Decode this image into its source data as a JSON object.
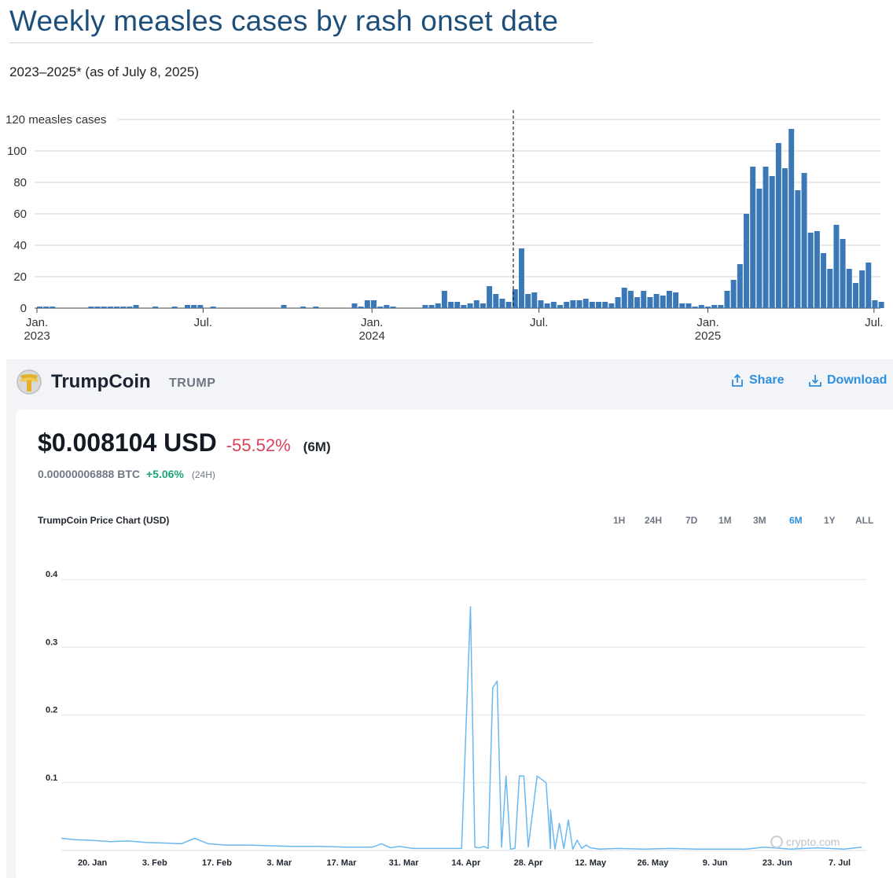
{
  "chart_data": [
    {
      "type": "bar",
      "title": "Weekly measles cases by rash onset date",
      "subtitle": "2023–2025* (as of July 8, 2025)",
      "y_unit_label": "measles cases",
      "ylim": [
        0,
        120
      ],
      "yticks": [
        0,
        20,
        40,
        60,
        80,
        100,
        120
      ],
      "x_start": "2023-01-01",
      "x_end": "2025-07-08",
      "x_ticks": [
        {
          "date": "2023-01-01",
          "label": "Jan.",
          "year": "2023"
        },
        {
          "date": "2023-07-01",
          "label": "Jul.",
          "year": ""
        },
        {
          "date": "2024-01-01",
          "label": "Jan.",
          "year": "2024"
        },
        {
          "date": "2024-07-01",
          "label": "Jul.",
          "year": ""
        },
        {
          "date": "2025-01-01",
          "label": "Jan.",
          "year": "2025"
        },
        {
          "date": "2025-07-01",
          "label": "Jul.",
          "year": ""
        }
      ],
      "reference_line_date": "2024-06-03",
      "grid": true,
      "bar_color": "#3a78b7",
      "weeks": [
        {
          "week": "2023-01-01",
          "cases": 1
        },
        {
          "week": "2023-01-08",
          "cases": 1
        },
        {
          "week": "2023-01-15",
          "cases": 1
        },
        {
          "week": "2023-02-26",
          "cases": 1
        },
        {
          "week": "2023-03-05",
          "cases": 1
        },
        {
          "week": "2023-03-12",
          "cases": 1
        },
        {
          "week": "2023-03-19",
          "cases": 1
        },
        {
          "week": "2023-03-26",
          "cases": 1
        },
        {
          "week": "2023-04-02",
          "cases": 1
        },
        {
          "week": "2023-04-09",
          "cases": 1
        },
        {
          "week": "2023-04-16",
          "cases": 2
        },
        {
          "week": "2023-05-07",
          "cases": 1
        },
        {
          "week": "2023-05-28",
          "cases": 1
        },
        {
          "week": "2023-06-11",
          "cases": 2
        },
        {
          "week": "2023-06-18",
          "cases": 2
        },
        {
          "week": "2023-06-25",
          "cases": 2
        },
        {
          "week": "2023-07-09",
          "cases": 1
        },
        {
          "week": "2023-09-24",
          "cases": 2
        },
        {
          "week": "2023-10-15",
          "cases": 1
        },
        {
          "week": "2023-10-29",
          "cases": 1
        },
        {
          "week": "2023-12-10",
          "cases": 3
        },
        {
          "week": "2023-12-17",
          "cases": 1
        },
        {
          "week": "2023-12-24",
          "cases": 5
        },
        {
          "week": "2023-12-31",
          "cases": 5
        },
        {
          "week": "2024-01-07",
          "cases": 1
        },
        {
          "week": "2024-01-14",
          "cases": 2
        },
        {
          "week": "2024-01-21",
          "cases": 1
        },
        {
          "week": "2024-02-25",
          "cases": 2
        },
        {
          "week": "2024-03-03",
          "cases": 2
        },
        {
          "week": "2024-03-10",
          "cases": 3
        },
        {
          "week": "2024-03-17",
          "cases": 11
        },
        {
          "week": "2024-03-24",
          "cases": 4
        },
        {
          "week": "2024-03-31",
          "cases": 4
        },
        {
          "week": "2024-04-07",
          "cases": 2
        },
        {
          "week": "2024-04-14",
          "cases": 3
        },
        {
          "week": "2024-04-21",
          "cases": 5
        },
        {
          "week": "2024-04-28",
          "cases": 3
        },
        {
          "week": "2024-05-05",
          "cases": 14
        },
        {
          "week": "2024-05-12",
          "cases": 9
        },
        {
          "week": "2024-05-19",
          "cases": 6
        },
        {
          "week": "2024-05-26",
          "cases": 4
        },
        {
          "week": "2024-06-02",
          "cases": 12
        },
        {
          "week": "2024-06-09",
          "cases": 38
        },
        {
          "week": "2024-06-16",
          "cases": 9
        },
        {
          "week": "2024-06-23",
          "cases": 10
        },
        {
          "week": "2024-06-30",
          "cases": 5
        },
        {
          "week": "2024-07-07",
          "cases": 3
        },
        {
          "week": "2024-07-14",
          "cases": 4
        },
        {
          "week": "2024-07-21",
          "cases": 2
        },
        {
          "week": "2024-07-28",
          "cases": 4
        },
        {
          "week": "2024-08-04",
          "cases": 5
        },
        {
          "week": "2024-08-11",
          "cases": 5
        },
        {
          "week": "2024-08-18",
          "cases": 6
        },
        {
          "week": "2024-08-25",
          "cases": 4
        },
        {
          "week": "2024-09-01",
          "cases": 4
        },
        {
          "week": "2024-09-08",
          "cases": 4
        },
        {
          "week": "2024-09-15",
          "cases": 3
        },
        {
          "week": "2024-09-22",
          "cases": 7
        },
        {
          "week": "2024-09-29",
          "cases": 13
        },
        {
          "week": "2024-10-06",
          "cases": 11
        },
        {
          "week": "2024-10-13",
          "cases": 7
        },
        {
          "week": "2024-10-20",
          "cases": 11
        },
        {
          "week": "2024-10-27",
          "cases": 7
        },
        {
          "week": "2024-11-03",
          "cases": 9
        },
        {
          "week": "2024-11-10",
          "cases": 8
        },
        {
          "week": "2024-11-17",
          "cases": 11
        },
        {
          "week": "2024-11-24",
          "cases": 10
        },
        {
          "week": "2024-12-01",
          "cases": 3
        },
        {
          "week": "2024-12-08",
          "cases": 3
        },
        {
          "week": "2024-12-15",
          "cases": 1
        },
        {
          "week": "2024-12-22",
          "cases": 2
        },
        {
          "week": "2024-12-29",
          "cases": 1
        },
        {
          "week": "2025-01-05",
          "cases": 3
        },
        {
          "week": "2025-01-12",
          "cases": 1
        },
        {
          "week": "2025-01-19",
          "cases": 3
        },
        {
          "week": "2025-01-26",
          "cases": 4
        },
        {
          "week": "2025-02-02",
          "cases": 3
        },
        {
          "week": "2025-02-09",
          "cases": 1
        },
        {
          "week": "2025-02-16",
          "cases": 2
        },
        {
          "week": "2025-02-23",
          "cases": 1
        }
      ],
      "weeks_2025": [
        {
          "week": "2025-01-05",
          "cases": 2
        },
        {
          "week": "2025-01-12",
          "cases": 2
        },
        {
          "week": "2025-01-19",
          "cases": 11
        },
        {
          "week": "2025-01-26",
          "cases": 18
        },
        {
          "week": "2025-02-02",
          "cases": 28
        },
        {
          "week": "2025-02-09",
          "cases": 60
        },
        {
          "week": "2025-02-16",
          "cases": 90
        },
        {
          "week": "2025-02-23",
          "cases": 76
        },
        {
          "week": "2025-03-02",
          "cases": 90
        },
        {
          "week": "2025-03-09",
          "cases": 84
        },
        {
          "week": "2025-03-16",
          "cases": 105
        },
        {
          "week": "2025-03-23",
          "cases": 89
        },
        {
          "week": "2025-03-30",
          "cases": 114
        },
        {
          "week": "2025-04-06",
          "cases": 75
        },
        {
          "week": "2025-04-13",
          "cases": 86
        },
        {
          "week": "2025-04-20",
          "cases": 48
        },
        {
          "week": "2025-04-27",
          "cases": 49
        },
        {
          "week": "2025-05-04",
          "cases": 35
        },
        {
          "week": "2025-05-11",
          "cases": 25
        },
        {
          "week": "2025-05-18",
          "cases": 53
        },
        {
          "week": "2025-05-25",
          "cases": 44
        },
        {
          "week": "2025-06-01",
          "cases": 25
        },
        {
          "week": "2025-06-08",
          "cases": 16
        },
        {
          "week": "2025-06-15",
          "cases": 24
        },
        {
          "week": "2025-06-22",
          "cases": 29
        },
        {
          "week": "2025-06-29",
          "cases": 5
        },
        {
          "week": "2025-07-06",
          "cases": 4
        }
      ]
    },
    {
      "type": "line",
      "title": "TrumpCoin Price Chart (USD)",
      "ylim": [
        0,
        0.42
      ],
      "yticks": [
        0.1,
        0.2,
        0.3,
        0.4
      ],
      "x_start": "2025-01-13",
      "x_end": "2025-07-13",
      "x_ticks": [
        {
          "date": "2025-01-20",
          "label": "20. Jan"
        },
        {
          "date": "2025-02-03",
          "label": "3. Feb"
        },
        {
          "date": "2025-02-17",
          "label": "17. Feb"
        },
        {
          "date": "2025-03-03",
          "label": "3. Mar"
        },
        {
          "date": "2025-03-17",
          "label": "17. Mar"
        },
        {
          "date": "2025-03-31",
          "label": "31. Mar"
        },
        {
          "date": "2025-04-14",
          "label": "14. Apr"
        },
        {
          "date": "2025-04-28",
          "label": "28. Apr"
        },
        {
          "date": "2025-05-12",
          "label": "12. May"
        },
        {
          "date": "2025-05-26",
          "label": "26. May"
        },
        {
          "date": "2025-06-09",
          "label": "9. Jun"
        },
        {
          "date": "2025-06-23",
          "label": "23. Jun"
        },
        {
          "date": "2025-07-07",
          "label": "7. Jul"
        }
      ],
      "grid": true,
      "line_color": "#6ab8f0",
      "series": [
        {
          "x": [
            "2025-01-13",
            "2025-01-16",
            "2025-01-20",
            "2025-01-24",
            "2025-01-28",
            "2025-02-01",
            "2025-02-05",
            "2025-02-09",
            "2025-02-12",
            "2025-02-15",
            "2025-02-19",
            "2025-02-24",
            "2025-03-01",
            "2025-03-06",
            "2025-03-12",
            "2025-03-18",
            "2025-03-24",
            "2025-03-26",
            "2025-03-28",
            "2025-03-30",
            "2025-04-02",
            "2025-04-06",
            "2025-04-10",
            "2025-04-13",
            "2025-04-15",
            "2025-04-16",
            "2025-04-17",
            "2025-04-18",
            "2025-04-19",
            "2025-04-20",
            "2025-04-21",
            "2025-04-22",
            "2025-04-23",
            "2025-04-24",
            "2025-04-24",
            "2025-04-25",
            "2025-04-26",
            "2025-04-27",
            "2025-04-28",
            "2025-04-30",
            "2025-05-02",
            "2025-05-03",
            "2025-05-03",
            "2025-05-04",
            "2025-05-05",
            "2025-05-06",
            "2025-05-07",
            "2025-05-08",
            "2025-05-09",
            "2025-05-10",
            "2025-05-11",
            "2025-05-12",
            "2025-05-14",
            "2025-05-18",
            "2025-05-24",
            "2025-05-30",
            "2025-06-05",
            "2025-06-11",
            "2025-06-16",
            "2025-06-20",
            "2025-06-26",
            "2025-07-02",
            "2025-07-08",
            "2025-07-12"
          ],
          "y": [
            0.018,
            0.016,
            0.015,
            0.013,
            0.014,
            0.012,
            0.011,
            0.01,
            0.018,
            0.01,
            0.008,
            0.008,
            0.007,
            0.006,
            0.006,
            0.005,
            0.005,
            0.01,
            0.004,
            0.006,
            0.003,
            0.003,
            0.003,
            0.003,
            0.36,
            0.005,
            0.004,
            0.006,
            0.003,
            0.24,
            0.25,
            0.005,
            0.11,
            0.003,
            0.002,
            0.003,
            0.11,
            0.11,
            0.005,
            0.11,
            0.1,
            0.003,
            0.06,
            0.002,
            0.04,
            0.003,
            0.045,
            0.002,
            0.015,
            0.003,
            0.008,
            0.004,
            0.002,
            0.003,
            0.002,
            0.003,
            0.002,
            0.002,
            0.002,
            0.005,
            0.002,
            0.004,
            0.002,
            0.005
          ]
        }
      ]
    }
  ],
  "coin": {
    "name": "TrumpCoin",
    "symbol": "TRUMP",
    "price_usd": "$0.008104 USD",
    "change_usd": "-55.52%",
    "change_period": "(6M)",
    "price_btc": "0.00000006888 BTC",
    "change_btc": "+5.06%",
    "btc_period": "(24H)",
    "share_label": "Share",
    "download_label": "Download",
    "ranges": [
      "1H",
      "24H",
      "7D",
      "1M",
      "3M",
      "6M",
      "1Y",
      "ALL"
    ],
    "active_range": "6M",
    "watermark": "crypto.com",
    "colors": {
      "accent": "#2e8fde",
      "negative": "#d9435a",
      "positive": "#1aa378"
    }
  }
}
